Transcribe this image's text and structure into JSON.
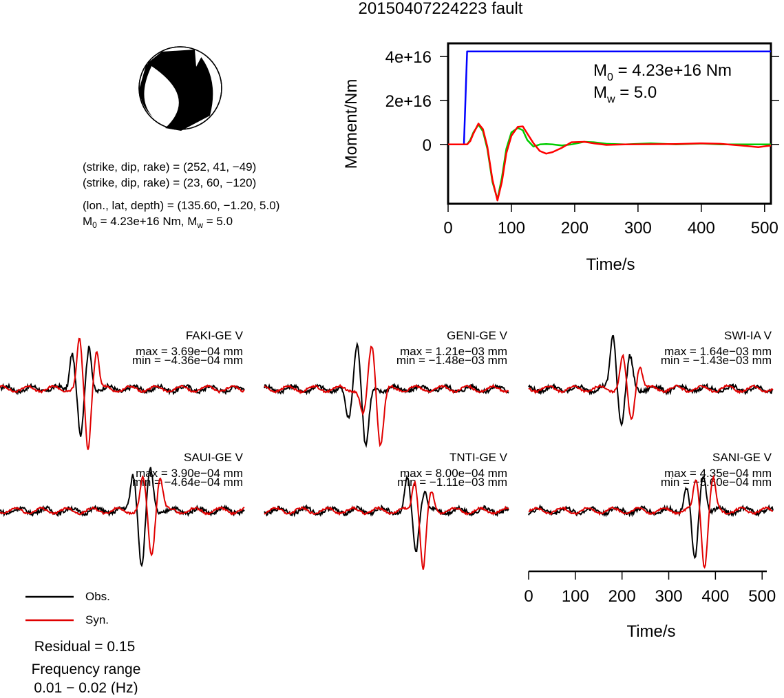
{
  "title": "20150407224223 fault",
  "mechanism": {
    "line1": "(strike, dip, rake) = (252, 41, −49)",
    "line2": "(strike, dip, rake) = (23, 60, −120)",
    "line3": "(lon., lat, depth) = (135.60, −1.20, 5.0)",
    "m0_sym": "M",
    "m0_sub": "0",
    "m0_text": " = 4.23e+16 Nm, M",
    "mw_sub": "w",
    "mw_text": " = 5.0"
  },
  "chart_data": [
    {
      "type": "line",
      "title": "",
      "xlabel": "Time/s",
      "ylabel": "Moment/Nm",
      "xlim": [
        0,
        510
      ],
      "ylim": [
        -2.7e+16,
        4.6e+16
      ],
      "xticks": [
        "0",
        "100",
        "200",
        "300",
        "400",
        "500"
      ],
      "yticks": [
        "0",
        "2e+16",
        "4e+16"
      ],
      "annotation": {
        "m0_sym": "M",
        "m0_sub": "0",
        "m0_text": " = 4.23e+16 Nm",
        "mw_sym": "M",
        "mw_sub": "w",
        "mw_text": " = 5.0"
      },
      "series": [
        {
          "color": "#0000ff",
          "x": [
            0,
            25,
            30,
            35,
            510
          ],
          "y": [
            0,
            0,
            4.23e+16,
            4.23e+16,
            4.23e+16
          ]
        },
        {
          "color": "#00cc00",
          "x": [
            0,
            25,
            30,
            35,
            40,
            48,
            55,
            62,
            70,
            78,
            85,
            92,
            100,
            110,
            118,
            125,
            135,
            145,
            155,
            165,
            180,
            195,
            215,
            230,
            250,
            280,
            320,
            360,
            400,
            430,
            460,
            490,
            510
          ],
          "y": [
            0,
            0,
            0,
            2000000000000000.0,
            5500000000000000.0,
            9000000000000000.0,
            6000000000000000.0,
            -2000000000000000.0,
            -1.7e+16,
            -2.5e+16,
            -1.5e+16,
            -2000000000000000.0,
            5500000000000000.0,
            7500000000000000.0,
            6500000000000000.0,
            2000000000000000.0,
            -1000000000000000.0,
            0,
            200000000000000.0,
            0,
            -500000000000000.0,
            0,
            1200000000000000.0,
            1000000000000000.0,
            300000000000000.0,
            0,
            500000000000000.0,
            0,
            400000000000000.0,
            0,
            0,
            0,
            0
          ]
        },
        {
          "color": "#ff0000",
          "x": [
            0,
            25,
            30,
            35,
            40,
            48,
            55,
            62,
            70,
            78,
            85,
            92,
            100,
            110,
            118,
            125,
            135,
            145,
            155,
            165,
            180,
            195,
            215,
            230,
            250,
            280,
            320,
            360,
            400,
            430,
            460,
            490,
            510
          ],
          "y": [
            0,
            0,
            0,
            1500000000000000.0,
            5000000000000000.0,
            9500000000000000.0,
            7000000000000000.0,
            -1000000000000000.0,
            -1.6e+16,
            -2.55e+16,
            -1.7e+16,
            -4000000000000000.0,
            4000000000000000.0,
            8000000000000000.0,
            8200000000000000.0,
            5000000000000000.0,
            500000000000000.0,
            -3000000000000000.0,
            -4200000000000000.0,
            -3500000000000000.0,
            -1500000000000000.0,
            1000000000000000.0,
            1200000000000000.0,
            500000000000000.0,
            -200000000000000.0,
            0,
            100000000000000.0,
            200000000000000.0,
            500000000000000.0,
            300000000000000.0,
            -400000000000000.0,
            -1200000000000000.0,
            -500000000000000.0
          ]
        }
      ]
    }
  ],
  "stations": [
    {
      "name": "FAKI-GE V",
      "max": "max = 3.69e−04 mm",
      "min": "min = −4.36e−04 mm"
    },
    {
      "name": "GENI-GE V",
      "max": "max = 1.21e−03 mm",
      "min": "min = −1.48e−03 mm"
    },
    {
      "name": "SWI-IA V",
      "max": "max = 1.64e−03 mm",
      "min": "min = −1.43e−03 mm"
    },
    {
      "name": "SAUI-GE V",
      "max": "max = 3.90e−04 mm",
      "min": "min = −4.64e−04 mm"
    },
    {
      "name": "TNTI-GE V",
      "max": "max = 8.00e−04 mm",
      "min": "min = −1.11e−03 mm"
    },
    {
      "name": "SANI-GE V",
      "max": "max = 4.35e−04 mm",
      "min": "min = −5.60e−04 mm"
    }
  ],
  "waveform_axis": {
    "xlabel": "Time/s",
    "xlim": [
      0,
      510
    ],
    "xticks": [
      "0",
      "100",
      "200",
      "300",
      "400",
      "500"
    ]
  },
  "legend": {
    "obs_label": "Obs.",
    "syn_label": "Syn.",
    "obs_color": "#000000",
    "syn_color": "#e00000"
  },
  "residual": "Residual = 0.15",
  "freq_label": "Frequency range",
  "freq_value": "0.01 − 0.02 (Hz)"
}
